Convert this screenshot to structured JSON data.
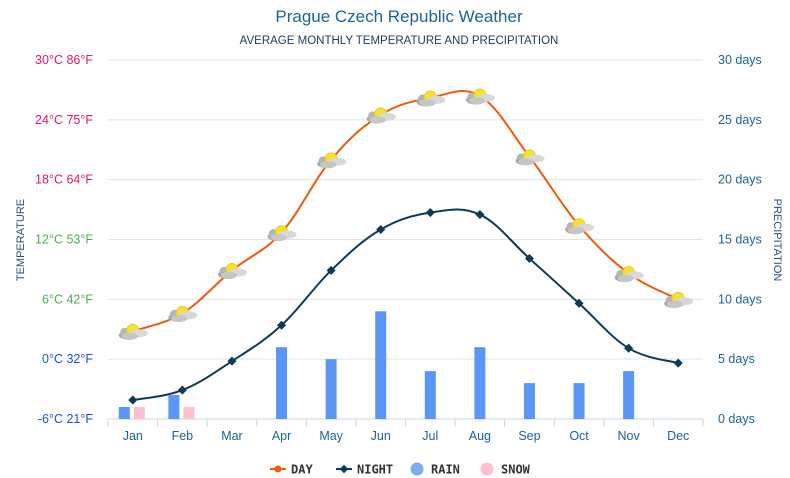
{
  "chart_data": {
    "type": "line",
    "title": "Prague Czech Republic Weather",
    "subtitle": "AVERAGE MONTHLY TEMPERATURE AND PRECIPITATION",
    "ylabel": "TEMPERATURE",
    "y2label": "PRECIPITATION",
    "categories": [
      "Jan",
      "Feb",
      "Mar",
      "Apr",
      "May",
      "Jun",
      "Jul",
      "Aug",
      "Sep",
      "Oct",
      "Nov",
      "Dec"
    ],
    "ylim": [
      -6,
      30
    ],
    "y2lim": [
      0,
      30
    ],
    "grid": true,
    "legend_position": "bottom",
    "y_ticks": [
      {
        "label": "30°C 86°F",
        "value": 30,
        "color": "#e8175d"
      },
      {
        "label": "24°C 75°F",
        "value": 24,
        "color": "#e8175d"
      },
      {
        "label": "18°C 64°F",
        "value": 18,
        "color": "#e8175d"
      },
      {
        "label": "12°C 53°F",
        "value": 12,
        "color": "#4caf50"
      },
      {
        "label": "6°C 42°F",
        "value": 6,
        "color": "#4caf50"
      },
      {
        "label": "0°C 32°F",
        "value": 0,
        "color": "#1a4fe0"
      },
      {
        "label": "-6°C 21°F",
        "value": -6,
        "color": "#1a4fe0"
      }
    ],
    "y2_ticks": [
      {
        "label": "30 days",
        "value": 30
      },
      {
        "label": "25 days",
        "value": 25
      },
      {
        "label": "20 days",
        "value": 20
      },
      {
        "label": "15 days",
        "value": 15
      },
      {
        "label": "10 days",
        "value": 10
      },
      {
        "label": "5 days",
        "value": 5
      },
      {
        "label": "0 days",
        "value": 0
      }
    ],
    "series": [
      {
        "name": "DAY",
        "type": "line",
        "axis": "temperature",
        "color": "#f05a0c",
        "marker": "weather-icon",
        "values": [
          2.8,
          4.6,
          8.9,
          12.7,
          20.0,
          24.5,
          26.2,
          26.4,
          20.3,
          13.4,
          8.6,
          6.0
        ]
      },
      {
        "name": "NIGHT",
        "type": "line",
        "axis": "temperature",
        "color": "#0d3b56",
        "marker": "diamond",
        "values": [
          -4.1,
          -3.1,
          -0.2,
          3.4,
          8.9,
          13.0,
          14.7,
          14.5,
          10.1,
          5.6,
          1.1,
          -0.4
        ]
      },
      {
        "name": "RAIN",
        "type": "bar",
        "axis": "precipitation",
        "color": "#5a96f5",
        "values": [
          1,
          2,
          0,
          6,
          5,
          9,
          4,
          6,
          3,
          3,
          4,
          0
        ]
      },
      {
        "name": "SNOW",
        "type": "bar",
        "axis": "precipitation",
        "color": "#ffc0cb",
        "values": [
          1,
          1,
          0,
          0,
          0,
          0,
          0,
          0,
          0,
          0,
          0,
          0
        ]
      }
    ],
    "legend": [
      {
        "label": "DAY",
        "color": "#f05a0c",
        "symbol": "line-dot"
      },
      {
        "label": "NIGHT",
        "color": "#0d3b56",
        "symbol": "line-diamond"
      },
      {
        "label": "RAIN",
        "color": "#7aaeea",
        "symbol": "circle"
      },
      {
        "label": "SNOW",
        "color": "#ffc0cb",
        "symbol": "circle"
      }
    ]
  }
}
